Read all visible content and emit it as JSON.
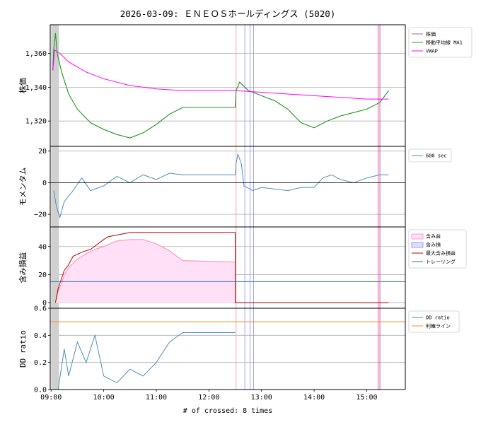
{
  "chart_data": {
    "type": "line",
    "title": "2026-03-09: ＥＮＥＯＳホールディングス (5020)",
    "xlabel": "# of crossed: 8 times",
    "x_ticks": [
      "09:00",
      "10:00",
      "11:00",
      "12:00",
      "13:00",
      "14:00",
      "15:00"
    ],
    "x_range": [
      "08:59",
      "15:44"
    ],
    "panels": [
      {
        "id": "price",
        "ylabel": "株価",
        "ylim": [
          1305,
          1377
        ],
        "y_ticks": [
          "1,320",
          "1,340",
          "1,360"
        ],
        "y_tick_values": [
          1320,
          1340,
          1360
        ],
        "grid": true,
        "legend": {
          "placement": "outside-right",
          "entries": [
            "株価",
            "移動平均線 MA1",
            "VWAP"
          ]
        },
        "series": [
          {
            "name": "株価",
            "color": "#808080",
            "points": [
              [
                "09:02",
                1350
              ],
              [
                "09:03",
                1362
              ],
              [
                "09:05",
                1372
              ],
              [
                "09:07",
                1360
              ],
              [
                "09:12",
                1349
              ],
              [
                "09:20",
                1336
              ],
              [
                "09:30",
                1327
              ],
              [
                "09:45",
                1319
              ],
              [
                "10:00",
                1315
              ],
              [
                "10:15",
                1312
              ],
              [
                "10:30",
                1310
              ],
              [
                "10:45",
                1313
              ],
              [
                "11:00",
                1318
              ],
              [
                "11:15",
                1324
              ],
              [
                "11:30",
                1328
              ],
              [
                "12:30",
                1328
              ],
              [
                "12:31",
                1338
              ],
              [
                "12:35",
                1343
              ],
              [
                "12:45",
                1338
              ],
              [
                "13:00",
                1335
              ],
              [
                "13:15",
                1332
              ],
              [
                "13:30",
                1327
              ],
              [
                "13:45",
                1319
              ],
              [
                "14:00",
                1316
              ],
              [
                "14:15",
                1320
              ],
              [
                "14:30",
                1323
              ],
              [
                "14:45",
                1325
              ],
              [
                "15:00",
                1327
              ],
              [
                "15:15",
                1331
              ],
              [
                "15:25",
                1338
              ]
            ]
          },
          {
            "name": "移動平均線 MA1",
            "color": "#1a9e1a",
            "points": [
              [
                "09:02",
                1350
              ],
              [
                "09:03",
                1362
              ],
              [
                "09:05",
                1372
              ],
              [
                "09:07",
                1360
              ],
              [
                "09:12",
                1349
              ],
              [
                "09:20",
                1336
              ],
              [
                "09:30",
                1327
              ],
              [
                "09:45",
                1319
              ],
              [
                "10:00",
                1315
              ],
              [
                "10:15",
                1312
              ],
              [
                "10:30",
                1310
              ],
              [
                "10:45",
                1313
              ],
              [
                "11:00",
                1318
              ],
              [
                "11:15",
                1324
              ],
              [
                "11:30",
                1328
              ],
              [
                "12:30",
                1328
              ],
              [
                "12:31",
                1338
              ],
              [
                "12:35",
                1343
              ],
              [
                "12:45",
                1338
              ],
              [
                "13:00",
                1335
              ],
              [
                "13:15",
                1332
              ],
              [
                "13:30",
                1327
              ],
              [
                "13:45",
                1319
              ],
              [
                "14:00",
                1316
              ],
              [
                "14:15",
                1320
              ],
              [
                "14:30",
                1323
              ],
              [
                "14:45",
                1325
              ],
              [
                "15:00",
                1327
              ],
              [
                "15:15",
                1331
              ],
              [
                "15:25",
                1338
              ]
            ]
          },
          {
            "name": "VWAP",
            "color": "#ff00ff",
            "points": [
              [
                "09:02",
                1350
              ],
              [
                "09:04",
                1362
              ],
              [
                "09:10",
                1360
              ],
              [
                "09:20",
                1355
              ],
              [
                "09:40",
                1349
              ],
              [
                "10:00",
                1345
              ],
              [
                "10:30",
                1341
              ],
              [
                "11:00",
                1339
              ],
              [
                "11:30",
                1338
              ],
              [
                "12:30",
                1338
              ],
              [
                "13:00",
                1337
              ],
              [
                "13:30",
                1336
              ],
              [
                "14:00",
                1335
              ],
              [
                "14:30",
                1334
              ],
              [
                "15:00",
                1333
              ],
              [
                "15:25",
                1333
              ]
            ]
          }
        ],
        "vlines": [
          {
            "x": "12:31",
            "color": "#ff9999"
          },
          {
            "x": "12:41",
            "color": "#9999ff"
          },
          {
            "x": "12:47",
            "color": "#9999ff"
          },
          {
            "x": "12:51",
            "color": "#9999ff"
          },
          {
            "x": "15:13",
            "color": "#dd44aa"
          },
          {
            "x": "15:15",
            "color": "#dd44aa"
          }
        ]
      },
      {
        "id": "momentum",
        "ylabel": "モメンタム",
        "ylim": [
          -28,
          23
        ],
        "y_ticks": [
          "−20",
          "0",
          "20"
        ],
        "y_tick_values": [
          -20,
          0,
          20
        ],
        "grid": true,
        "legend": {
          "placement": "outside-right",
          "entries": [
            "600 sec"
          ]
        },
        "series": [
          {
            "name": "600 sec",
            "color": "#4c8fbd",
            "points": [
              [
                "09:03",
                -5
              ],
              [
                "09:06",
                -15
              ],
              [
                "09:10",
                -22
              ],
              [
                "09:15",
                -12
              ],
              [
                "09:25",
                -5
              ],
              [
                "09:35",
                3
              ],
              [
                "09:45",
                -5
              ],
              [
                "10:00",
                -2
              ],
              [
                "10:15",
                4
              ],
              [
                "10:30",
                0
              ],
              [
                "10:45",
                5
              ],
              [
                "11:00",
                2
              ],
              [
                "11:15",
                6
              ],
              [
                "11:30",
                5
              ],
              [
                "12:30",
                5
              ],
              [
                "12:31",
                12
              ],
              [
                "12:33",
                18
              ],
              [
                "12:37",
                12
              ],
              [
                "12:40",
                -2
              ],
              [
                "12:50",
                -5
              ],
              [
                "13:00",
                -3
              ],
              [
                "13:15",
                -4
              ],
              [
                "13:30",
                -5
              ],
              [
                "13:45",
                -3
              ],
              [
                "14:00",
                -3
              ],
              [
                "14:10",
                3
              ],
              [
                "14:20",
                5
              ],
              [
                "14:30",
                2
              ],
              [
                "14:45",
                0
              ],
              [
                "15:00",
                3
              ],
              [
                "15:15",
                5
              ],
              [
                "15:25",
                5
              ]
            ]
          }
        ],
        "vlines": [
          {
            "x": "12:31",
            "color": "#ff9999"
          },
          {
            "x": "12:41",
            "color": "#9999ff"
          },
          {
            "x": "12:47",
            "color": "#9999ff"
          },
          {
            "x": "12:51",
            "color": "#9999ff"
          },
          {
            "x": "15:13",
            "color": "#dd44aa"
          },
          {
            "x": "15:15",
            "color": "#dd44aa"
          }
        ]
      },
      {
        "id": "unrealized",
        "ylabel": "含み損益",
        "ylim": [
          -4,
          54
        ],
        "y_ticks": [
          "0",
          "20",
          "40"
        ],
        "y_tick_values": [
          0,
          20,
          40
        ],
        "grid": true,
        "legend": {
          "placement": "outside-right",
          "entries": [
            "含み益",
            "含み損",
            "最大含み損益",
            "トレーリング"
          ]
        },
        "series": [
          {
            "name": "含み益",
            "color": "#ff88aa",
            "fill": "#ffe0f7",
            "points": [
              [
                "09:05",
                0
              ],
              [
                "09:08",
                8
              ],
              [
                "09:12",
                14
              ],
              [
                "09:15",
                20
              ],
              [
                "09:20",
                25
              ],
              [
                "09:30",
                31
              ],
              [
                "09:40",
                35
              ],
              [
                "09:50",
                38
              ],
              [
                "10:00",
                40
              ],
              [
                "10:15",
                44
              ],
              [
                "10:30",
                45
              ],
              [
                "10:45",
                45
              ],
              [
                "11:00",
                42
              ],
              [
                "11:15",
                37
              ],
              [
                "11:30",
                30
              ],
              [
                "12:30",
                29
              ]
            ]
          },
          {
            "name": "含み損",
            "color": "#8888ff",
            "fill": "#ddddff",
            "points": []
          },
          {
            "name": "最大含み損益",
            "color": "#b30000",
            "points": [
              [
                "09:05",
                0
              ],
              [
                "09:08",
                10
              ],
              [
                "09:15",
                23
              ],
              [
                "09:20",
                27
              ],
              [
                "09:25",
                33
              ],
              [
                "09:35",
                36
              ],
              [
                "09:45",
                38
              ],
              [
                "10:00",
                45
              ],
              [
                "10:05",
                47
              ],
              [
                "10:30",
                50
              ],
              [
                "12:30",
                50
              ],
              [
                "12:30",
                0
              ],
              [
                "15:25",
                0
              ]
            ]
          },
          {
            "name": "トレーリング",
            "color": "#3a6fa8",
            "value": 15
          }
        ],
        "vlines": [
          {
            "x": "12:31",
            "color": "#ff9999"
          },
          {
            "x": "12:41",
            "color": "#9999ff"
          },
          {
            "x": "12:47",
            "color": "#9999ff"
          },
          {
            "x": "12:51",
            "color": "#9999ff"
          },
          {
            "x": "15:13",
            "color": "#dd44aa"
          },
          {
            "x": "15:15",
            "color": "#dd44aa"
          }
        ]
      },
      {
        "id": "dd",
        "ylabel": "DD ratio",
        "ylim": [
          0.0,
          0.6
        ],
        "y_ticks": [
          "0.0",
          "0.2",
          "0.4",
          "0.6"
        ],
        "y_tick_values": [
          0.0,
          0.2,
          0.4,
          0.6
        ],
        "grid": true,
        "legend": {
          "placement": "outside-right",
          "entries": [
            "DD ratio",
            "利確ライン"
          ]
        },
        "series": [
          {
            "name": "DD ratio",
            "color": "#4c8fbd",
            "points": [
              [
                "09:08",
                0.0
              ],
              [
                "09:15",
                0.3
              ],
              [
                "09:20",
                0.1
              ],
              [
                "09:30",
                0.35
              ],
              [
                "09:40",
                0.2
              ],
              [
                "09:50",
                0.4
              ],
              [
                "10:00",
                0.1
              ],
              [
                "10:15",
                0.05
              ],
              [
                "10:30",
                0.15
              ],
              [
                "10:45",
                0.1
              ],
              [
                "11:00",
                0.2
              ],
              [
                "11:15",
                0.35
              ],
              [
                "11:30",
                0.42
              ],
              [
                "12:30",
                0.42
              ]
            ]
          },
          {
            "name": "利確ライン",
            "color": "#ff8c1a",
            "value": 0.5
          }
        ],
        "vlines": [
          {
            "x": "12:31",
            "color": "#ff9999"
          },
          {
            "x": "12:41",
            "color": "#9999ff"
          },
          {
            "x": "12:47",
            "color": "#9999ff"
          },
          {
            "x": "12:51",
            "color": "#9999ff"
          },
          {
            "x": "15:13",
            "color": "#dd44aa"
          },
          {
            "x": "15:15",
            "color": "#dd44aa"
          }
        ]
      }
    ],
    "shaded_span": {
      "from": "09:00",
      "to": "09:09",
      "color": "#d0d0d0"
    }
  }
}
